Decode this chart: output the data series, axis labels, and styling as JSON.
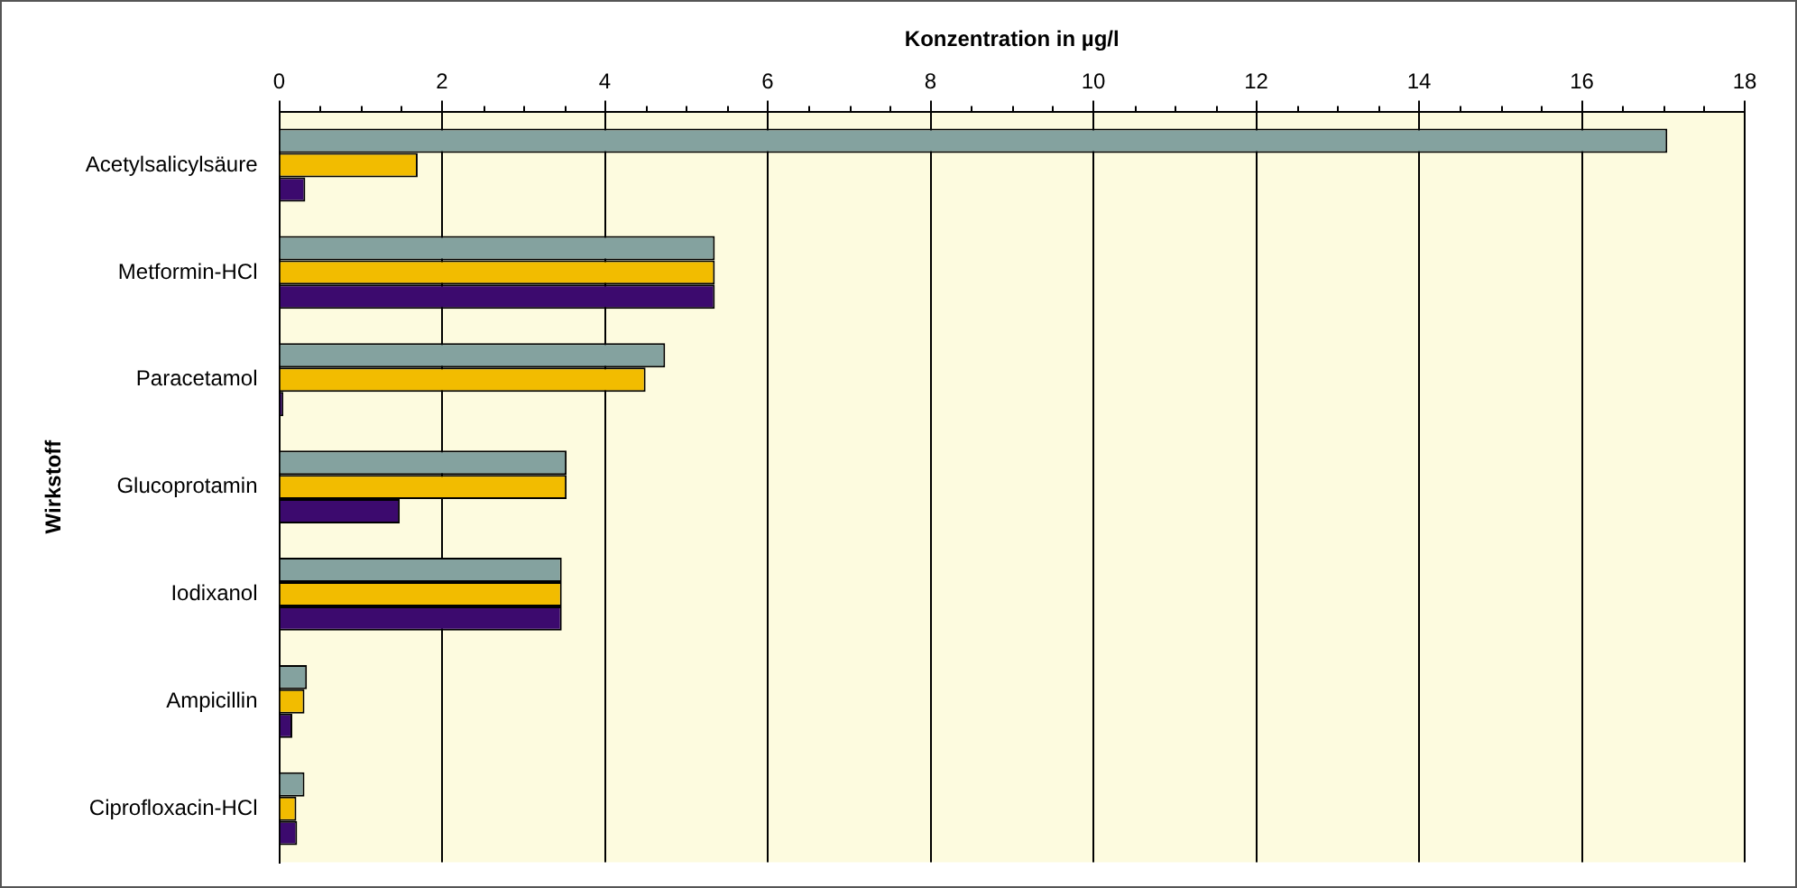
{
  "chart_data": {
    "type": "bar",
    "orientation": "horizontal",
    "xlabel": "Konzentration in µg/l",
    "ylabel": "Wirkstoff",
    "categories": [
      "Acetylsalicylsäure",
      "Metformin-HCl",
      "Paracetamol",
      "Glucoprotamin",
      "Iodixanol",
      "Ampicillin",
      "Ciprofloxacin-HCl"
    ],
    "series": [
      {
        "color": "#84a29f",
        "values": [
          17.05,
          5.35,
          4.74,
          3.53,
          3.47,
          0.34,
          0.31
        ]
      },
      {
        "color": "#f2bc00",
        "values": [
          1.7,
          5.35,
          4.5,
          3.53,
          3.47,
          0.31,
          0.21
        ]
      },
      {
        "color": "#3c0a6e",
        "values": [
          0.32,
          5.35,
          0.05,
          1.48,
          3.47,
          0.16,
          0.22
        ]
      }
    ],
    "xlim": [
      0,
      18
    ],
    "xticks": [
      0,
      2,
      4,
      6,
      8,
      10,
      12,
      14,
      16,
      18
    ],
    "grid": "x",
    "legend": false
  }
}
